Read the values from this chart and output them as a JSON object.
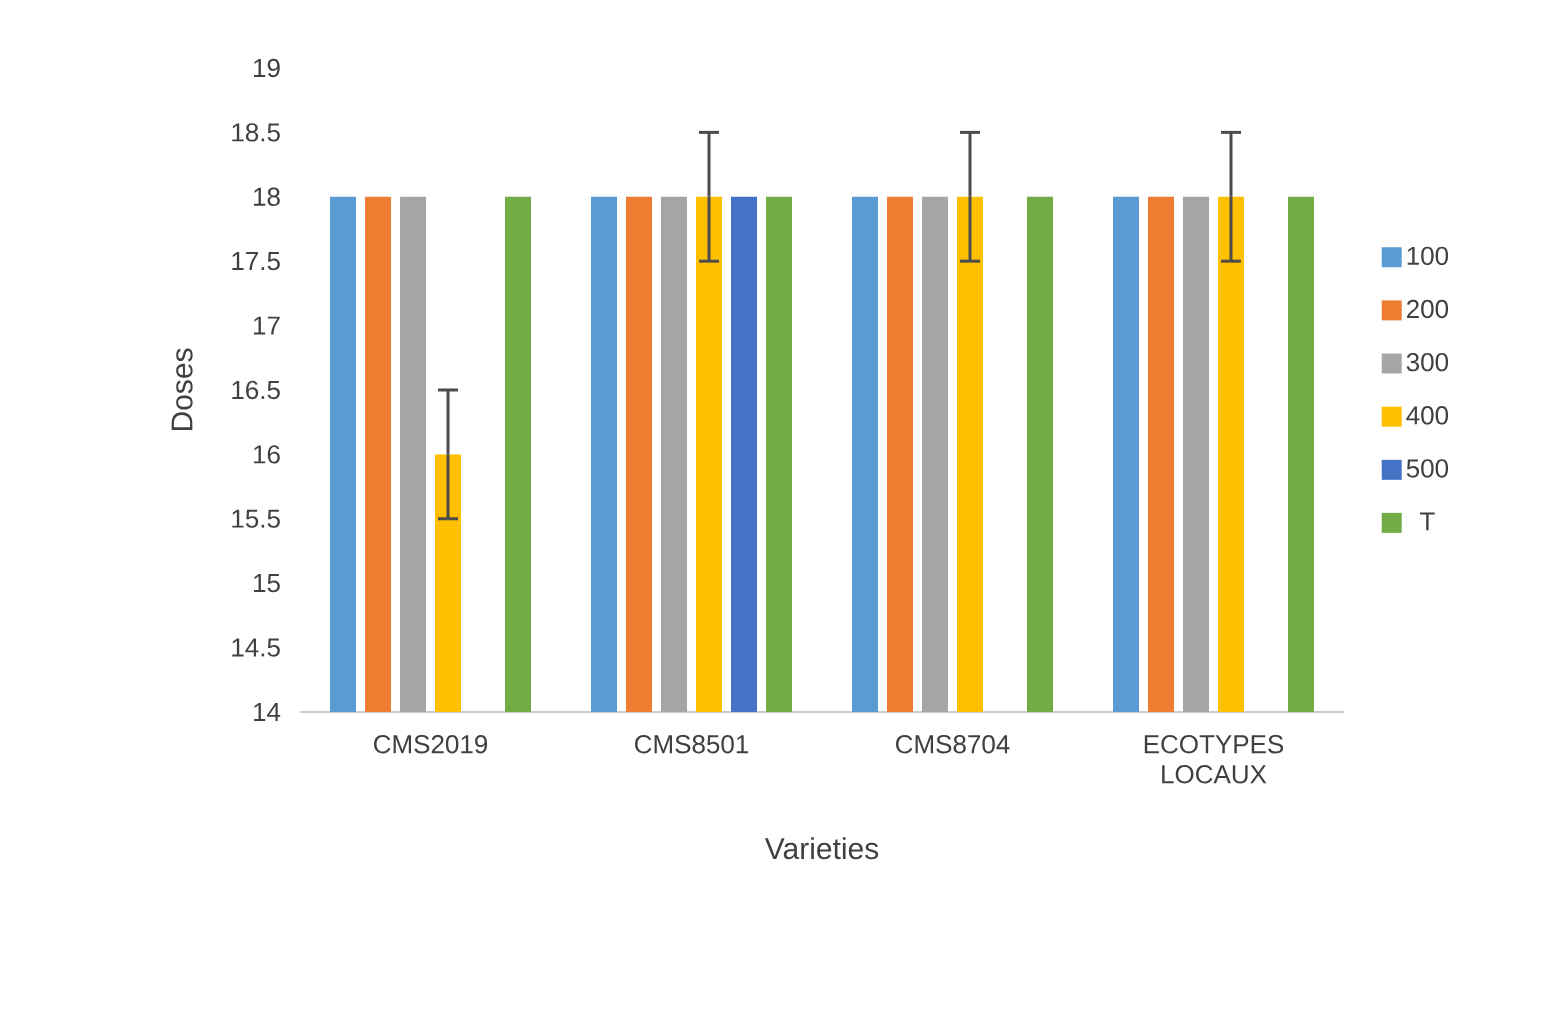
{
  "chart_data": {
    "type": "bar",
    "xlabel": "Varieties",
    "ylabel": "Doses",
    "categories": [
      "CMS2019",
      "CMS8501",
      "CMS8704",
      "ECOTYPES LOCAUX"
    ],
    "series": [
      {
        "name": "100",
        "color": "#5b9bd5",
        "values": [
          18,
          18,
          18,
          18
        ]
      },
      {
        "name": "200",
        "color": "#ed7d31",
        "values": [
          18,
          18,
          18,
          18
        ]
      },
      {
        "name": "300",
        "color": "#a5a5a5",
        "values": [
          18,
          18,
          18,
          18
        ]
      },
      {
        "name": "400",
        "color": "#ffc000",
        "values": [
          16,
          18,
          18,
          18
        ],
        "errors": [
          0.5,
          0.5,
          0.5,
          0.5
        ]
      },
      {
        "name": "500",
        "color": "#4472c4",
        "values": [
          null,
          18,
          null,
          null
        ]
      },
      {
        "name": "T",
        "color": "#70ad47",
        "values": [
          18,
          18,
          18,
          18
        ]
      }
    ],
    "ylim": [
      14,
      19
    ],
    "yticks": [
      14,
      14.5,
      15,
      15.5,
      16,
      16.5,
      17,
      17.5,
      18,
      18.5,
      19
    ],
    "grid": false,
    "legend": "right"
  }
}
